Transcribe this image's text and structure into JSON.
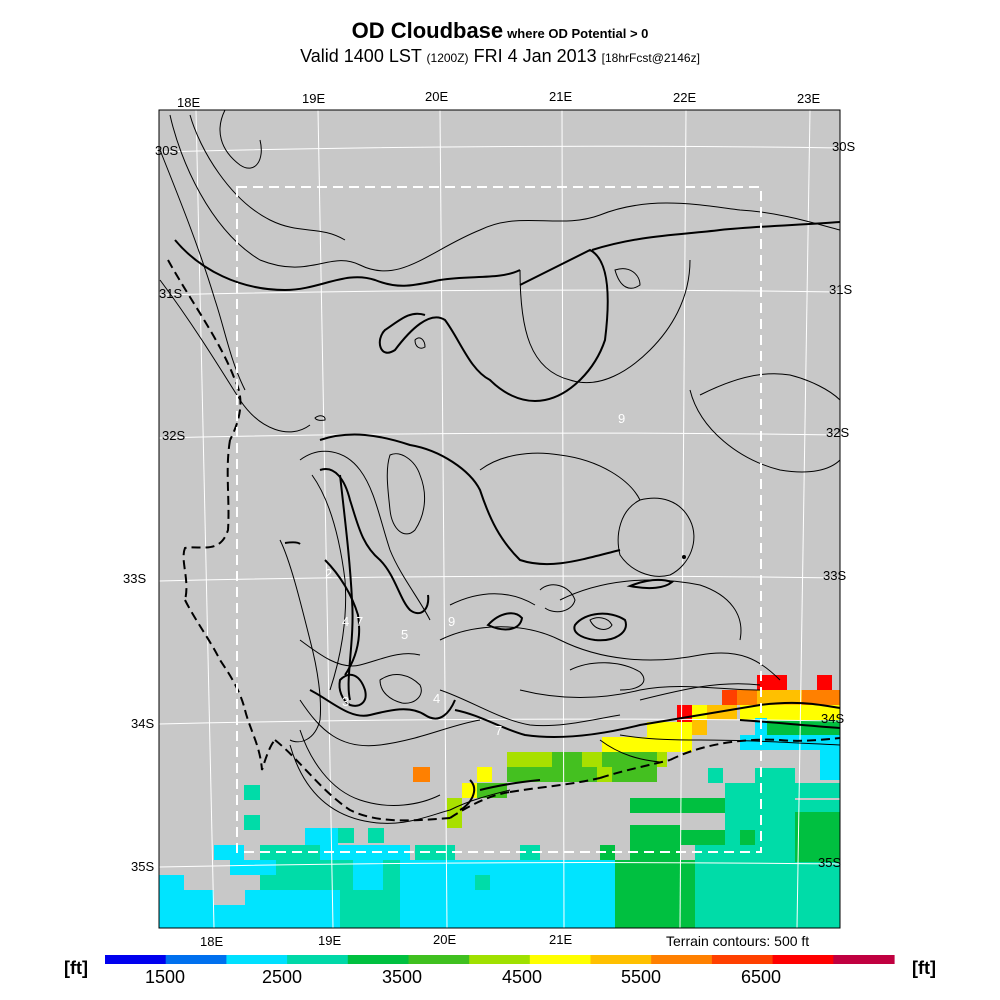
{
  "title": {
    "main": "OD Cloudbase",
    "subtitle": "where OD Potential > 0",
    "valid_prefix": "Valid 1400 LST",
    "valid_zulu": "(1200Z)",
    "valid_date": "FRI 4 Jan 2013",
    "forecast": "[18hrFcst@2146z]"
  },
  "map": {
    "background_color": "#c8c8c8",
    "terrain_note": "Terrain contours: 500 ft",
    "longitude_labels": [
      "18E",
      "19E",
      "20E",
      "21E",
      "22E",
      "23E"
    ],
    "latitude_labels": [
      "30S",
      "31S",
      "32S",
      "33S",
      "34S",
      "35S"
    ],
    "contour_labels": [
      "9",
      "9",
      "2",
      "4",
      "7",
      "5",
      "4",
      "3",
      "7"
    ]
  },
  "legend": {
    "unit_left": "[ft]",
    "unit_right": "[ft]",
    "tick_labels": [
      "1500",
      "2500",
      "3500",
      "4500",
      "5500",
      "6500"
    ],
    "colors": [
      "#0000ee",
      "#0070ee",
      "#00e0ff",
      "#00d8a8",
      "#00c040",
      "#40c020",
      "#a0e000",
      "#ffff00",
      "#ffc000",
      "#ff8000",
      "#ff4000",
      "#ff0000",
      "#c00040"
    ]
  },
  "cloudbase_colors": {
    "c1": "#00e4ff",
    "c2": "#00dca8",
    "c3": "#00c040",
    "c4": "#44c020",
    "c5": "#a8e000",
    "c6": "#ffff00",
    "c7": "#ffc000",
    "c8": "#ff8000",
    "c9": "#ff4000",
    "c10": "#ff0000"
  }
}
